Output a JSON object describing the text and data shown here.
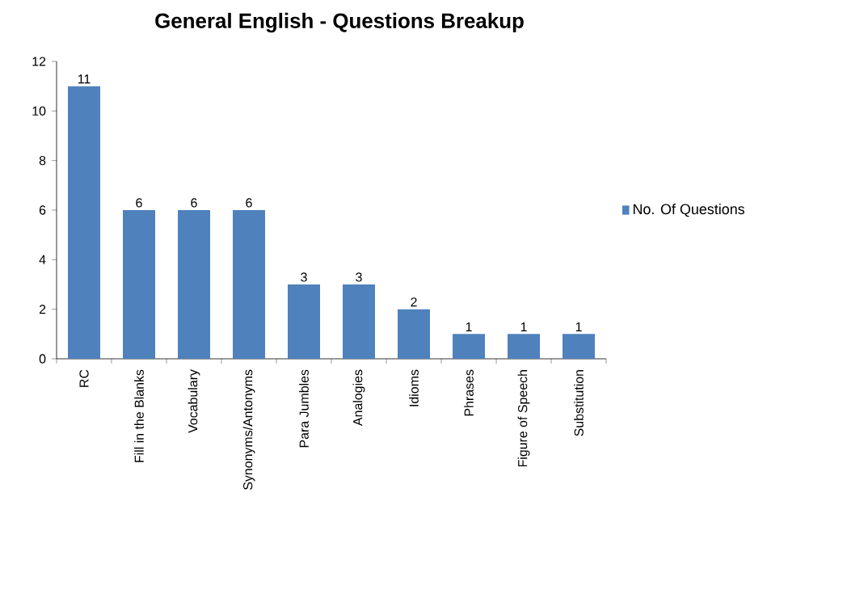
{
  "chart_data": {
    "type": "bar",
    "title": "General English - Questions Breakup",
    "categories": [
      "RC",
      "Fill in the Blanks",
      "Vocabulary",
      "Synonyms/Antonyms",
      "Para Jumbles",
      "Analogies",
      "Idioms",
      "Phrases",
      "Figure of Speech",
      "Substitution"
    ],
    "series": [
      {
        "name": "No. Of Questions",
        "color": "#4f81bd",
        "values": [
          11,
          6,
          6,
          6,
          3,
          3,
          2,
          1,
          1,
          1
        ]
      }
    ],
    "ylim": [
      0,
      12
    ],
    "yticks": [
      0,
      2,
      4,
      6,
      8,
      10,
      12
    ],
    "data_labels": true,
    "legend": "right"
  }
}
